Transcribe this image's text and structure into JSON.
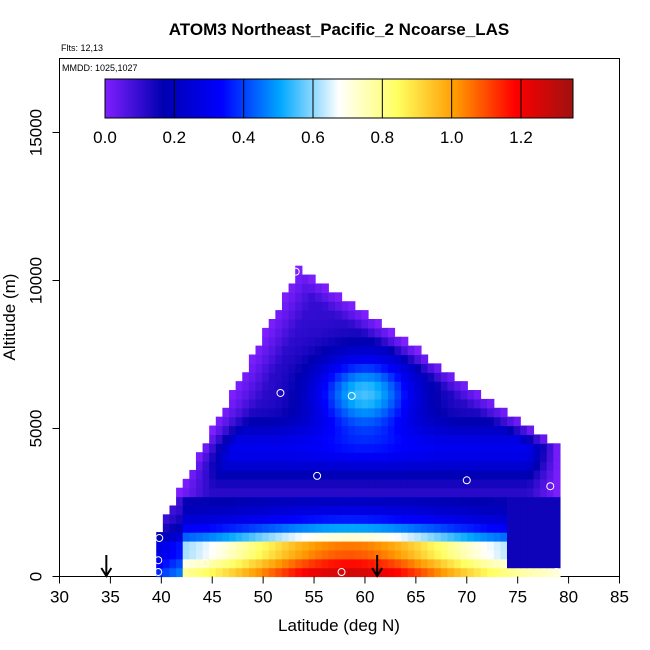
{
  "chart_data": {
    "type": "heatmap",
    "title": "ATOM3 Northeast_Pacific_2 Ncoarse_LAS",
    "annotations": {
      "flights": "Flts: 12,13",
      "dates": "MMDD: 1025,1027"
    },
    "xlabel": "Latitude (deg N)",
    "ylabel": "Altitude (m)",
    "xlim": [
      30,
      85
    ],
    "ylim": [
      0,
      17500
    ],
    "xticks": [
      "30",
      "35",
      "40",
      "45",
      "50",
      "55",
      "60",
      "65",
      "70",
      "75",
      "80",
      "85"
    ],
    "yticks": [
      "0",
      "5000",
      "10000",
      "15000"
    ],
    "colorbar": {
      "ticks": [
        "0.0",
        "0.2",
        "0.4",
        "0.6",
        "0.8",
        "1.0",
        "1.2"
      ],
      "range": [
        0,
        1.35
      ],
      "colors": [
        "#7f1fff",
        "#0000b0",
        "#0000ff",
        "#00a8ff",
        "#ffffff",
        "#ffff60",
        "#ff9a00",
        "#ff0000",
        "#a01010"
      ]
    },
    "field": {
      "summit_lat": 53.5,
      "summit_alt": 10400,
      "left_base_lat": 39.5,
      "left_base_alt": 1400,
      "right_edge_lat": 79,
      "right_edge_alt": 4400,
      "base_lat_range": [
        39.5,
        79
      ]
    },
    "sample_points": [
      {
        "lat": 53.2,
        "alt": 10300
      },
      {
        "lat": 51.7,
        "alt": 6200
      },
      {
        "lat": 58.7,
        "alt": 6100
      },
      {
        "lat": 55.3,
        "alt": 3400
      },
      {
        "lat": 70.0,
        "alt": 3250
      },
      {
        "lat": 78.2,
        "alt": 3050
      },
      {
        "lat": 79.6,
        "alt": 4200
      },
      {
        "lat": 39.8,
        "alt": 1300
      },
      {
        "lat": 44.3,
        "alt": 450
      },
      {
        "lat": 39.7,
        "alt": 550
      },
      {
        "lat": 39.7,
        "alt": 150
      },
      {
        "lat": 57.7,
        "alt": 150
      },
      {
        "lat": 78.8,
        "alt": 150
      }
    ],
    "markers": [
      {
        "type": "arrow-down",
        "lat": 34.6
      },
      {
        "type": "arrow-down",
        "lat": 61.2
      }
    ]
  }
}
